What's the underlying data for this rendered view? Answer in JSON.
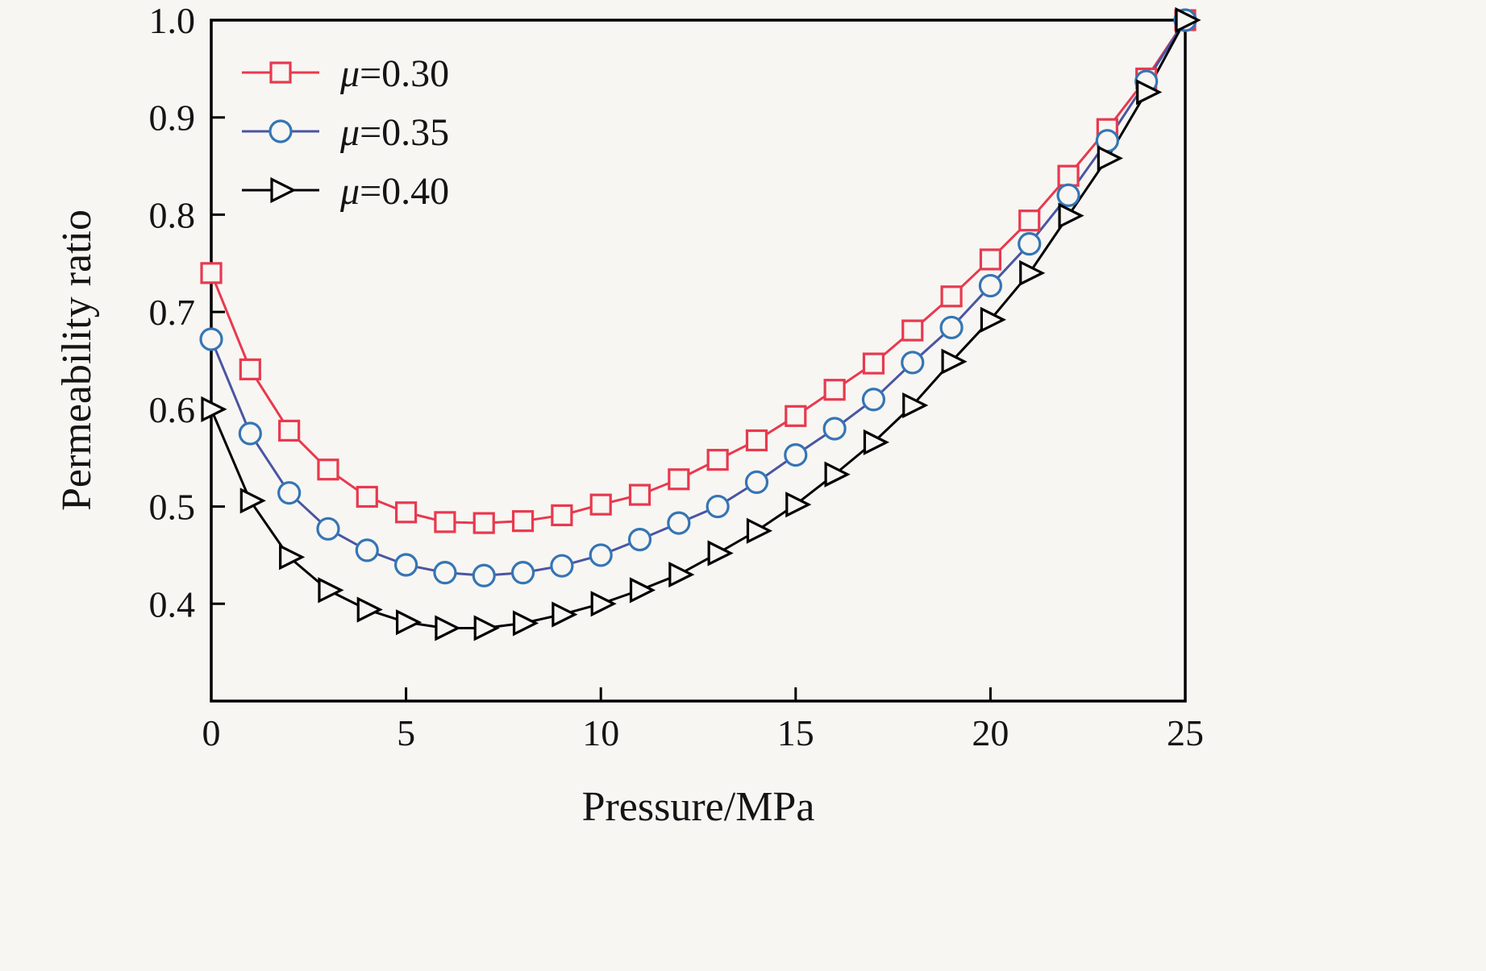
{
  "figure": {
    "background": "#f7f6f3",
    "frame_color": "#000000"
  },
  "chart_data": {
    "type": "line",
    "title": "",
    "xlabel": "Pressure/MPa",
    "ylabel": "Permeability ratio",
    "xlim": [
      0,
      25
    ],
    "ylim": [
      0.3,
      1.0
    ],
    "xticks": [
      0,
      5,
      10,
      15,
      20,
      25
    ],
    "yticks": [
      0.4,
      0.5,
      0.6,
      0.7,
      0.8,
      0.9,
      1.0
    ],
    "grid": false,
    "legend_position": "top-left-inside",
    "x": [
      0,
      1,
      2,
      3,
      4,
      5,
      6,
      7,
      8,
      9,
      10,
      11,
      12,
      13,
      14,
      15,
      16,
      17,
      18,
      19,
      20,
      21,
      22,
      23,
      24,
      25
    ],
    "series": [
      {
        "name": "mu-0.30",
        "label": "μ=0.30",
        "label_symbol": "μ",
        "label_rest": "=0.30",
        "color": "#e8394e",
        "marker": "square",
        "values": [
          0.74,
          0.641,
          0.578,
          0.538,
          0.51,
          0.494,
          0.484,
          0.483,
          0.485,
          0.491,
          0.502,
          0.512,
          0.528,
          0.548,
          0.568,
          0.593,
          0.62,
          0.647,
          0.681,
          0.716,
          0.754,
          0.794,
          0.84,
          0.888,
          0.94,
          1.0
        ]
      },
      {
        "name": "mu-0.35",
        "label": "μ=0.35",
        "label_symbol": "μ",
        "label_rest": "=0.35",
        "color": "#4a55a2",
        "marker_color": "#3575b4",
        "marker": "circle",
        "values": [
          0.672,
          0.575,
          0.514,
          0.477,
          0.455,
          0.44,
          0.432,
          0.429,
          0.432,
          0.439,
          0.45,
          0.466,
          0.483,
          0.5,
          0.525,
          0.553,
          0.58,
          0.61,
          0.648,
          0.684,
          0.727,
          0.77,
          0.82,
          0.876,
          0.937,
          1.0
        ]
      },
      {
        "name": "mu-0.40",
        "label": "μ=0.40",
        "label_symbol": "μ",
        "label_rest": "=0.40",
        "color": "#000000",
        "marker": "triangle-right",
        "values": [
          0.6,
          0.506,
          0.448,
          0.414,
          0.394,
          0.381,
          0.375,
          0.375,
          0.38,
          0.389,
          0.4,
          0.414,
          0.43,
          0.452,
          0.475,
          0.502,
          0.533,
          0.566,
          0.604,
          0.649,
          0.692,
          0.74,
          0.799,
          0.858,
          0.926,
          1.0
        ]
      }
    ]
  }
}
